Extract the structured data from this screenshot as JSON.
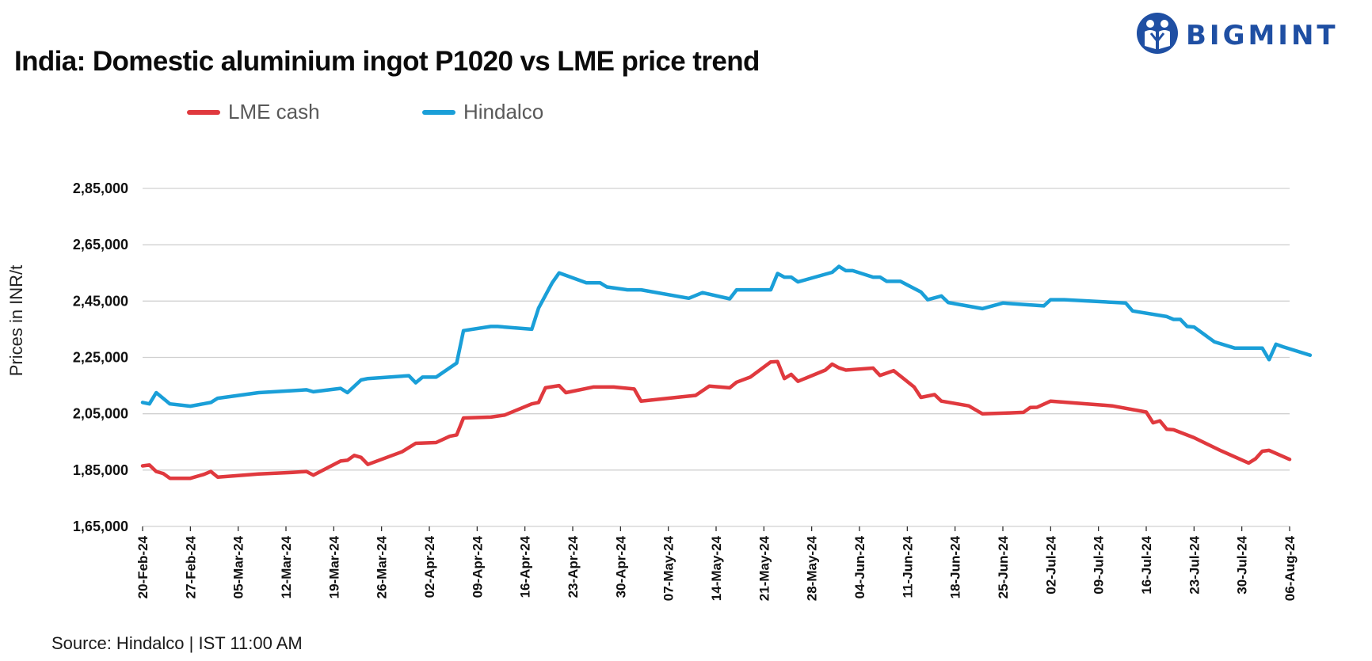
{
  "header": {
    "brand": "BIGMINT"
  },
  "colors": {
    "lme": "#e0393e",
    "hindalco": "#1a9fd8",
    "grid": "#d0d0d0",
    "brand": "#1f4fa3"
  },
  "source": "Source: Hindalco | IST 11:00 AM",
  "chart_data": {
    "type": "line",
    "title": "India: Domestic aluminium ingot P1020 vs LME price trend",
    "xlabel": "",
    "ylabel": "Prices in INR/t",
    "legend_position": "top-left",
    "grid": "horizontal",
    "x_range": [
      "2024-02-20",
      "2024-08-06"
    ],
    "ylim": [
      165000,
      285000
    ],
    "y_ticks": [
      165000,
      185000,
      205000,
      225000,
      245000,
      265000,
      285000
    ],
    "y_tick_labels": [
      "1,65,000",
      "1,85,000",
      "2,05,000",
      "2,25,000",
      "2,45,000",
      "2,65,000",
      "2,85,000"
    ],
    "x_tick_labels": [
      "20-Feb-24",
      "27-Feb-24",
      "05-Mar-24",
      "12-Mar-24",
      "19-Mar-24",
      "26-Mar-24",
      "02-Apr-24",
      "09-Apr-24",
      "16-Apr-24",
      "23-Apr-24",
      "30-Apr-24",
      "07-May-24",
      "14-May-24",
      "21-May-24",
      "28-May-24",
      "04-Jun-24",
      "11-Jun-24",
      "18-Jun-24",
      "25-Jun-24",
      "02-Jul-24",
      "09-Jul-24",
      "16-Jul-24",
      "23-Jul-24",
      "30-Jul-24",
      "06-Aug-24"
    ],
    "series": [
      {
        "name": "LME cash",
        "color": "#e0393e",
        "points": [
          [
            "2024-02-20",
            186500
          ],
          [
            "2024-02-21",
            186800
          ],
          [
            "2024-02-22",
            184500
          ],
          [
            "2024-02-23",
            183800
          ],
          [
            "2024-02-24",
            182100
          ],
          [
            "2024-02-27",
            182100
          ],
          [
            "2024-02-29",
            183500
          ],
          [
            "2024-03-01",
            184500
          ],
          [
            "2024-03-02",
            182500
          ],
          [
            "2024-03-08",
            183600
          ],
          [
            "2024-03-13",
            184200
          ],
          [
            "2024-03-15",
            184500
          ],
          [
            "2024-03-16",
            183200
          ],
          [
            "2024-03-20",
            188200
          ],
          [
            "2024-03-21",
            188500
          ],
          [
            "2024-03-22",
            190200
          ],
          [
            "2024-03-23",
            189500
          ],
          [
            "2024-03-24",
            187000
          ],
          [
            "2024-03-29",
            191500
          ],
          [
            "2024-03-31",
            194500
          ],
          [
            "2024-04-03",
            194800
          ],
          [
            "2024-04-05",
            197000
          ],
          [
            "2024-04-06",
            197500
          ],
          [
            "2024-04-07",
            203500
          ],
          [
            "2024-04-11",
            203800
          ],
          [
            "2024-04-13",
            204500
          ],
          [
            "2024-04-17",
            208500
          ],
          [
            "2024-04-18",
            209000
          ],
          [
            "2024-04-19",
            214200
          ],
          [
            "2024-04-21",
            215000
          ],
          [
            "2024-04-22",
            212500
          ],
          [
            "2024-04-26",
            214500
          ],
          [
            "2024-04-29",
            214500
          ],
          [
            "2024-05-02",
            213800
          ],
          [
            "2024-05-03",
            209500
          ],
          [
            "2024-05-09",
            211000
          ],
          [
            "2024-05-11",
            211500
          ],
          [
            "2024-05-13",
            214800
          ],
          [
            "2024-05-16",
            214200
          ],
          [
            "2024-05-17",
            216200
          ],
          [
            "2024-05-19",
            218000
          ],
          [
            "2024-05-22",
            223400
          ],
          [
            "2024-05-23",
            223500
          ],
          [
            "2024-05-24",
            217500
          ],
          [
            "2024-05-25",
            219000
          ],
          [
            "2024-05-26",
            216500
          ],
          [
            "2024-05-30",
            220500
          ],
          [
            "2024-05-31",
            222600
          ],
          [
            "2024-06-01",
            221300
          ],
          [
            "2024-06-02",
            220500
          ],
          [
            "2024-06-06",
            221200
          ],
          [
            "2024-06-07",
            218600
          ],
          [
            "2024-06-09",
            220300
          ],
          [
            "2024-06-12",
            214500
          ],
          [
            "2024-06-13",
            210800
          ],
          [
            "2024-06-15",
            211800
          ],
          [
            "2024-06-16",
            209500
          ],
          [
            "2024-06-20",
            207800
          ],
          [
            "2024-06-22",
            205000
          ],
          [
            "2024-06-26",
            205300
          ],
          [
            "2024-06-28",
            205500
          ],
          [
            "2024-06-29",
            207200
          ],
          [
            "2024-06-30",
            207300
          ],
          [
            "2024-07-02",
            209500
          ],
          [
            "2024-07-10",
            208000
          ],
          [
            "2024-07-11",
            207800
          ],
          [
            "2024-07-16",
            205600
          ],
          [
            "2024-07-17",
            201800
          ],
          [
            "2024-07-18",
            202500
          ],
          [
            "2024-07-19",
            199500
          ],
          [
            "2024-07-20",
            199300
          ],
          [
            "2024-07-23",
            196500
          ],
          [
            "2024-07-27",
            191800
          ],
          [
            "2024-07-31",
            187500
          ],
          [
            "2024-08-01",
            189000
          ],
          [
            "2024-08-02",
            191700
          ],
          [
            "2024-08-03",
            192000
          ],
          [
            "2024-08-06",
            188800
          ]
        ]
      },
      {
        "name": "Hindalco",
        "color": "#1a9fd8",
        "points": [
          [
            "2024-02-20",
            209000
          ],
          [
            "2024-02-21",
            208500
          ],
          [
            "2024-02-22",
            212500
          ],
          [
            "2024-02-24",
            208500
          ],
          [
            "2024-02-27",
            207700
          ],
          [
            "2024-03-01",
            209000
          ],
          [
            "2024-03-02",
            210500
          ],
          [
            "2024-03-08",
            212500
          ],
          [
            "2024-03-15",
            213500
          ],
          [
            "2024-03-16",
            212800
          ],
          [
            "2024-03-20",
            214000
          ],
          [
            "2024-03-21",
            212500
          ],
          [
            "2024-03-23",
            217000
          ],
          [
            "2024-03-24",
            217500
          ],
          [
            "2024-03-30",
            218500
          ],
          [
            "2024-03-31",
            216000
          ],
          [
            "2024-04-01",
            218000
          ],
          [
            "2024-04-03",
            218000
          ],
          [
            "2024-04-06",
            223000
          ],
          [
            "2024-04-07",
            234500
          ],
          [
            "2024-04-11",
            236000
          ],
          [
            "2024-04-12",
            236000
          ],
          [
            "2024-04-17",
            235000
          ],
          [
            "2024-04-18",
            242500
          ],
          [
            "2024-04-20",
            251500
          ],
          [
            "2024-04-21",
            255000
          ],
          [
            "2024-04-25",
            251500
          ],
          [
            "2024-04-27",
            251500
          ],
          [
            "2024-04-28",
            250000
          ],
          [
            "2024-05-01",
            249000
          ],
          [
            "2024-05-03",
            249000
          ],
          [
            "2024-05-10",
            246000
          ],
          [
            "2024-05-12",
            248000
          ],
          [
            "2024-05-16",
            245800
          ],
          [
            "2024-05-17",
            249000
          ],
          [
            "2024-05-22",
            249000
          ],
          [
            "2024-05-23",
            254800
          ],
          [
            "2024-05-24",
            253500
          ],
          [
            "2024-05-25",
            253500
          ],
          [
            "2024-05-26",
            251800
          ],
          [
            "2024-05-31",
            255200
          ],
          [
            "2024-06-01",
            257300
          ],
          [
            "2024-06-02",
            255800
          ],
          [
            "2024-06-03",
            255800
          ],
          [
            "2024-06-06",
            253500
          ],
          [
            "2024-06-07",
            253500
          ],
          [
            "2024-06-08",
            252000
          ],
          [
            "2024-06-10",
            252000
          ],
          [
            "2024-06-13",
            248200
          ],
          [
            "2024-06-14",
            245500
          ],
          [
            "2024-06-16",
            246800
          ],
          [
            "2024-06-17",
            244500
          ],
          [
            "2024-06-22",
            242300
          ],
          [
            "2024-06-25",
            244300
          ],
          [
            "2024-07-01",
            243300
          ],
          [
            "2024-07-02",
            245500
          ],
          [
            "2024-07-04",
            245500
          ],
          [
            "2024-07-13",
            244300
          ],
          [
            "2024-07-14",
            241500
          ],
          [
            "2024-07-19",
            239500
          ],
          [
            "2024-07-20",
            238500
          ],
          [
            "2024-07-21",
            238500
          ],
          [
            "2024-07-22",
            236000
          ],
          [
            "2024-07-23",
            235800
          ],
          [
            "2024-07-26",
            230500
          ],
          [
            "2024-07-29",
            228300
          ],
          [
            "2024-08-02",
            228300
          ],
          [
            "2024-08-03",
            224200
          ],
          [
            "2024-08-04",
            229700
          ],
          [
            "2024-08-05",
            228800
          ],
          [
            "2024-08-09",
            225800
          ]
        ]
      }
    ]
  }
}
